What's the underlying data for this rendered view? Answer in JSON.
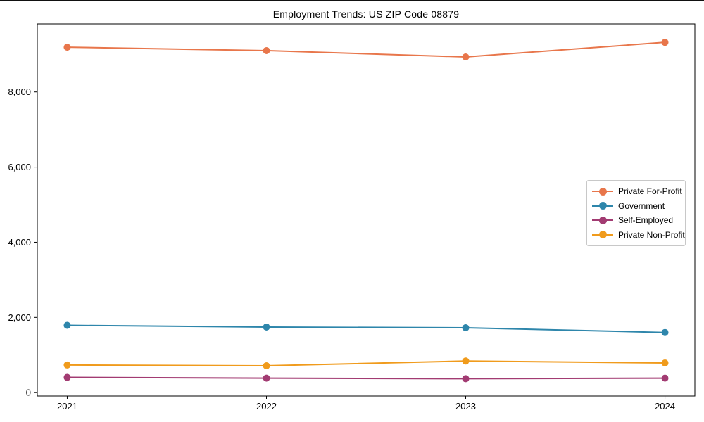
{
  "chart_data": {
    "type": "line",
    "title": "Employment Trends: US ZIP Code 08879",
    "xlabel": "",
    "ylabel": "",
    "x": [
      2021,
      2022,
      2023,
      2024
    ],
    "x_tick_labels": [
      "2021",
      "2022",
      "2023",
      "2024"
    ],
    "y_ticks": [
      0,
      2000,
      4000,
      6000,
      8000
    ],
    "y_tick_labels": [
      "0",
      "2,000",
      "4,000",
      "6,000",
      "8,000"
    ],
    "xlim": [
      2020.85,
      2024.15
    ],
    "ylim": [
      -90,
      9810
    ],
    "grid": false,
    "axis_color": "#000000",
    "text_color": "#000000",
    "legend": {
      "position": "center-right",
      "border_color": "#c8c8c8",
      "background": "#ffffff"
    },
    "series": [
      {
        "name": "Private For-Profit",
        "color": "#e8764b",
        "marker": "circle",
        "values": [
          9190,
          9100,
          8930,
          9320
        ]
      },
      {
        "name": "Government",
        "color": "#2e86ab",
        "marker": "circle",
        "values": [
          1790,
          1745,
          1725,
          1600
        ]
      },
      {
        "name": "Self-Employed",
        "color": "#a23b72",
        "marker": "circle",
        "values": [
          405,
          385,
          370,
          385
        ]
      },
      {
        "name": "Private Non-Profit",
        "color": "#f09b1c",
        "marker": "circle",
        "values": [
          735,
          715,
          840,
          790
        ]
      }
    ]
  }
}
